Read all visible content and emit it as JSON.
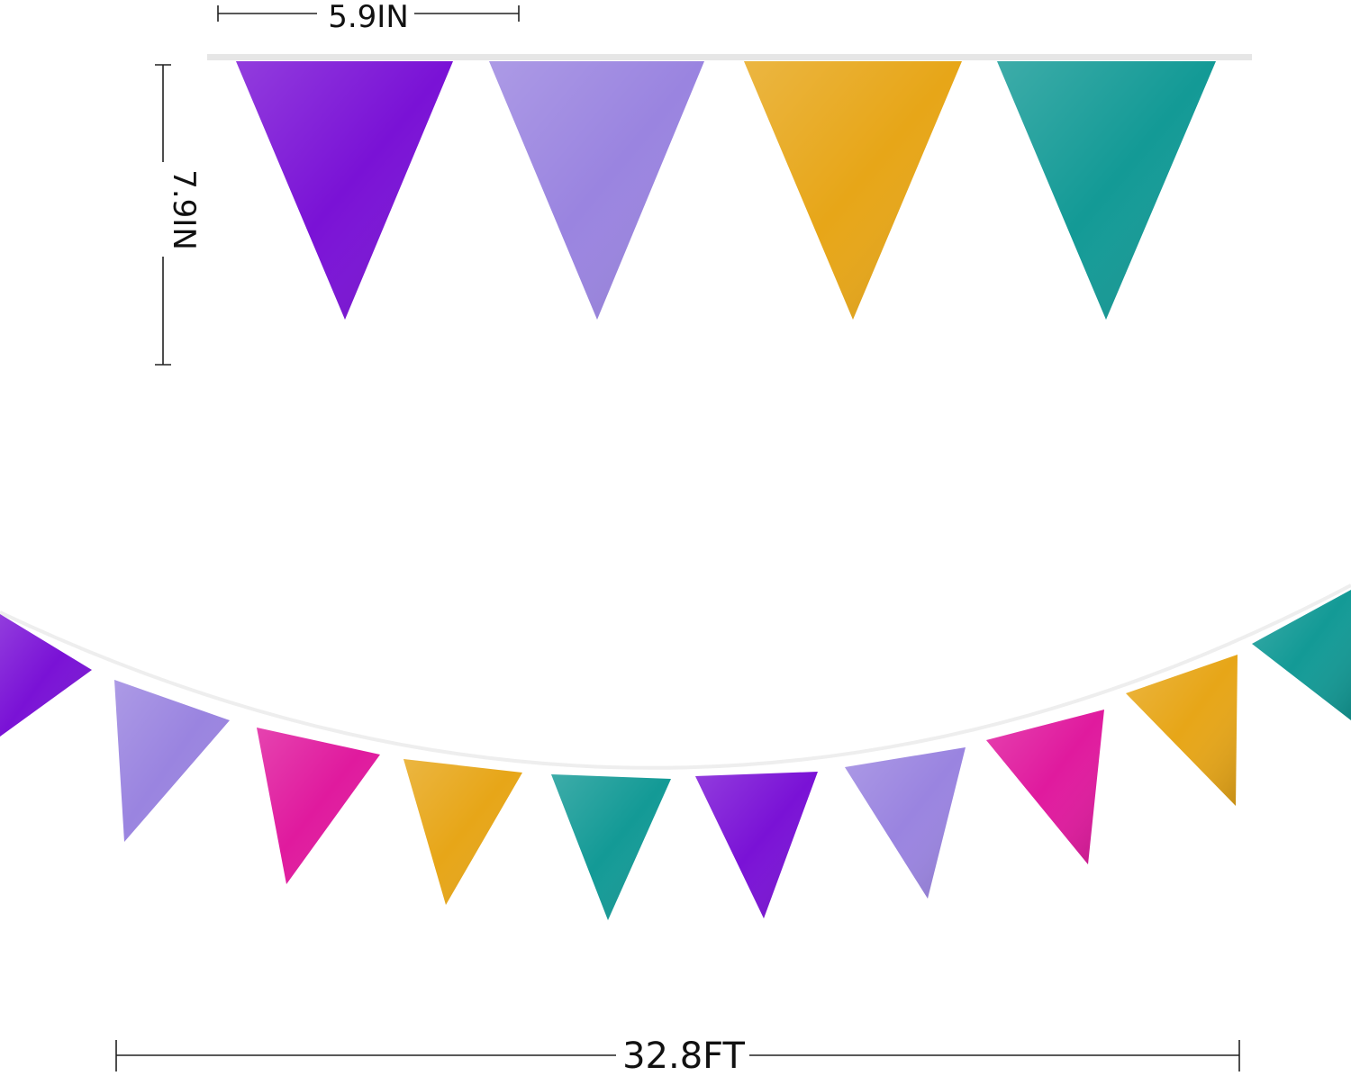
{
  "dimensions": {
    "flag_width": "5.9IN",
    "flag_height": "7.9IN",
    "total_length": "32.8FT"
  },
  "colors": {
    "purple": "#7a12d6",
    "lavender": "#9a84e0",
    "gold": "#e7a618",
    "teal": "#139a96",
    "magenta": "#e01a9e",
    "dimension_line": "#222222",
    "string": "#e6e6e6"
  },
  "closeup_flags": [
    "purple",
    "lavender",
    "gold",
    "teal"
  ],
  "garland_flags": [
    "purple",
    "lavender",
    "magenta",
    "gold",
    "teal",
    "purple",
    "lavender",
    "magenta",
    "gold",
    "teal"
  ]
}
